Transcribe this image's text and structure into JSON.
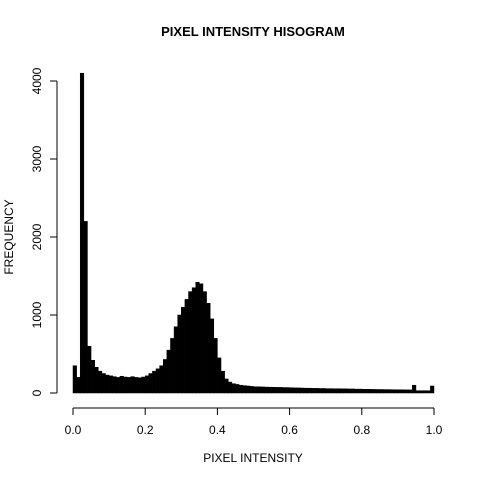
{
  "chart_data": {
    "type": "histogram",
    "title": "PIXEL INTENSITY HISOGRAM",
    "xlabel": "PIXEL INTENSITY",
    "ylabel": "FREQUENCY",
    "bins": [
      0,
      0.01,
      0.02,
      0.03,
      0.04,
      0.05,
      0.06,
      0.07,
      0.08,
      0.09,
      0.1,
      0.11,
      0.12,
      0.13,
      0.14,
      0.15,
      0.16,
      0.17,
      0.18,
      0.19,
      0.2,
      0.21,
      0.22,
      0.23,
      0.24,
      0.25,
      0.26,
      0.27,
      0.28,
      0.29,
      0.3,
      0.31,
      0.32,
      0.33,
      0.34,
      0.35,
      0.36,
      0.37,
      0.38,
      0.39,
      0.4,
      0.41,
      0.42,
      0.43,
      0.44,
      0.45,
      0.46,
      0.47,
      0.48,
      0.49,
      0.5,
      0.51,
      0.52,
      0.53,
      0.54,
      0.55,
      0.56,
      0.57,
      0.58,
      0.59,
      0.6,
      0.61,
      0.62,
      0.63,
      0.64,
      0.65,
      0.66,
      0.67,
      0.68,
      0.69,
      0.7,
      0.71,
      0.72,
      0.73,
      0.74,
      0.75,
      0.76,
      0.77,
      0.78,
      0.79,
      0.8,
      0.81,
      0.82,
      0.83,
      0.84,
      0.85,
      0.86,
      0.87,
      0.88,
      0.89,
      0.9,
      0.91,
      0.92,
      0.93,
      0.94,
      0.95,
      0.96,
      0.97,
      0.98,
      0.99,
      1
    ],
    "values": [
      350,
      200,
      4100,
      2200,
      600,
      420,
      330,
      280,
      250,
      230,
      220,
      210,
      200,
      215,
      205,
      200,
      210,
      200,
      195,
      205,
      220,
      250,
      280,
      310,
      350,
      430,
      550,
      700,
      850,
      1000,
      1100,
      1200,
      1300,
      1350,
      1420,
      1400,
      1300,
      1150,
      950,
      700,
      450,
      280,
      180,
      140,
      120,
      110,
      100,
      95,
      90,
      85,
      80,
      80,
      78,
      76,
      75,
      74,
      72,
      72,
      70,
      70,
      68,
      66,
      65,
      64,
      62,
      62,
      60,
      60,
      58,
      58,
      56,
      56,
      55,
      55,
      54,
      54,
      52,
      52,
      50,
      50,
      48,
      48,
      47,
      46,
      45,
      45,
      44,
      44,
      43,
      42,
      42,
      41,
      40,
      40,
      100,
      30,
      30,
      30,
      30,
      90
    ],
    "color": "#000000",
    "xlim": [
      0,
      1
    ],
    "ylim": [
      0,
      4000
    ],
    "xticks": [
      {
        "value": 0,
        "label": "0.0"
      },
      0.2,
      0.4,
      0.6,
      0.8,
      {
        "value": 1,
        "label": "1.0"
      }
    ],
    "yticks": [
      0,
      1000,
      2000,
      3000,
      4000
    ]
  }
}
